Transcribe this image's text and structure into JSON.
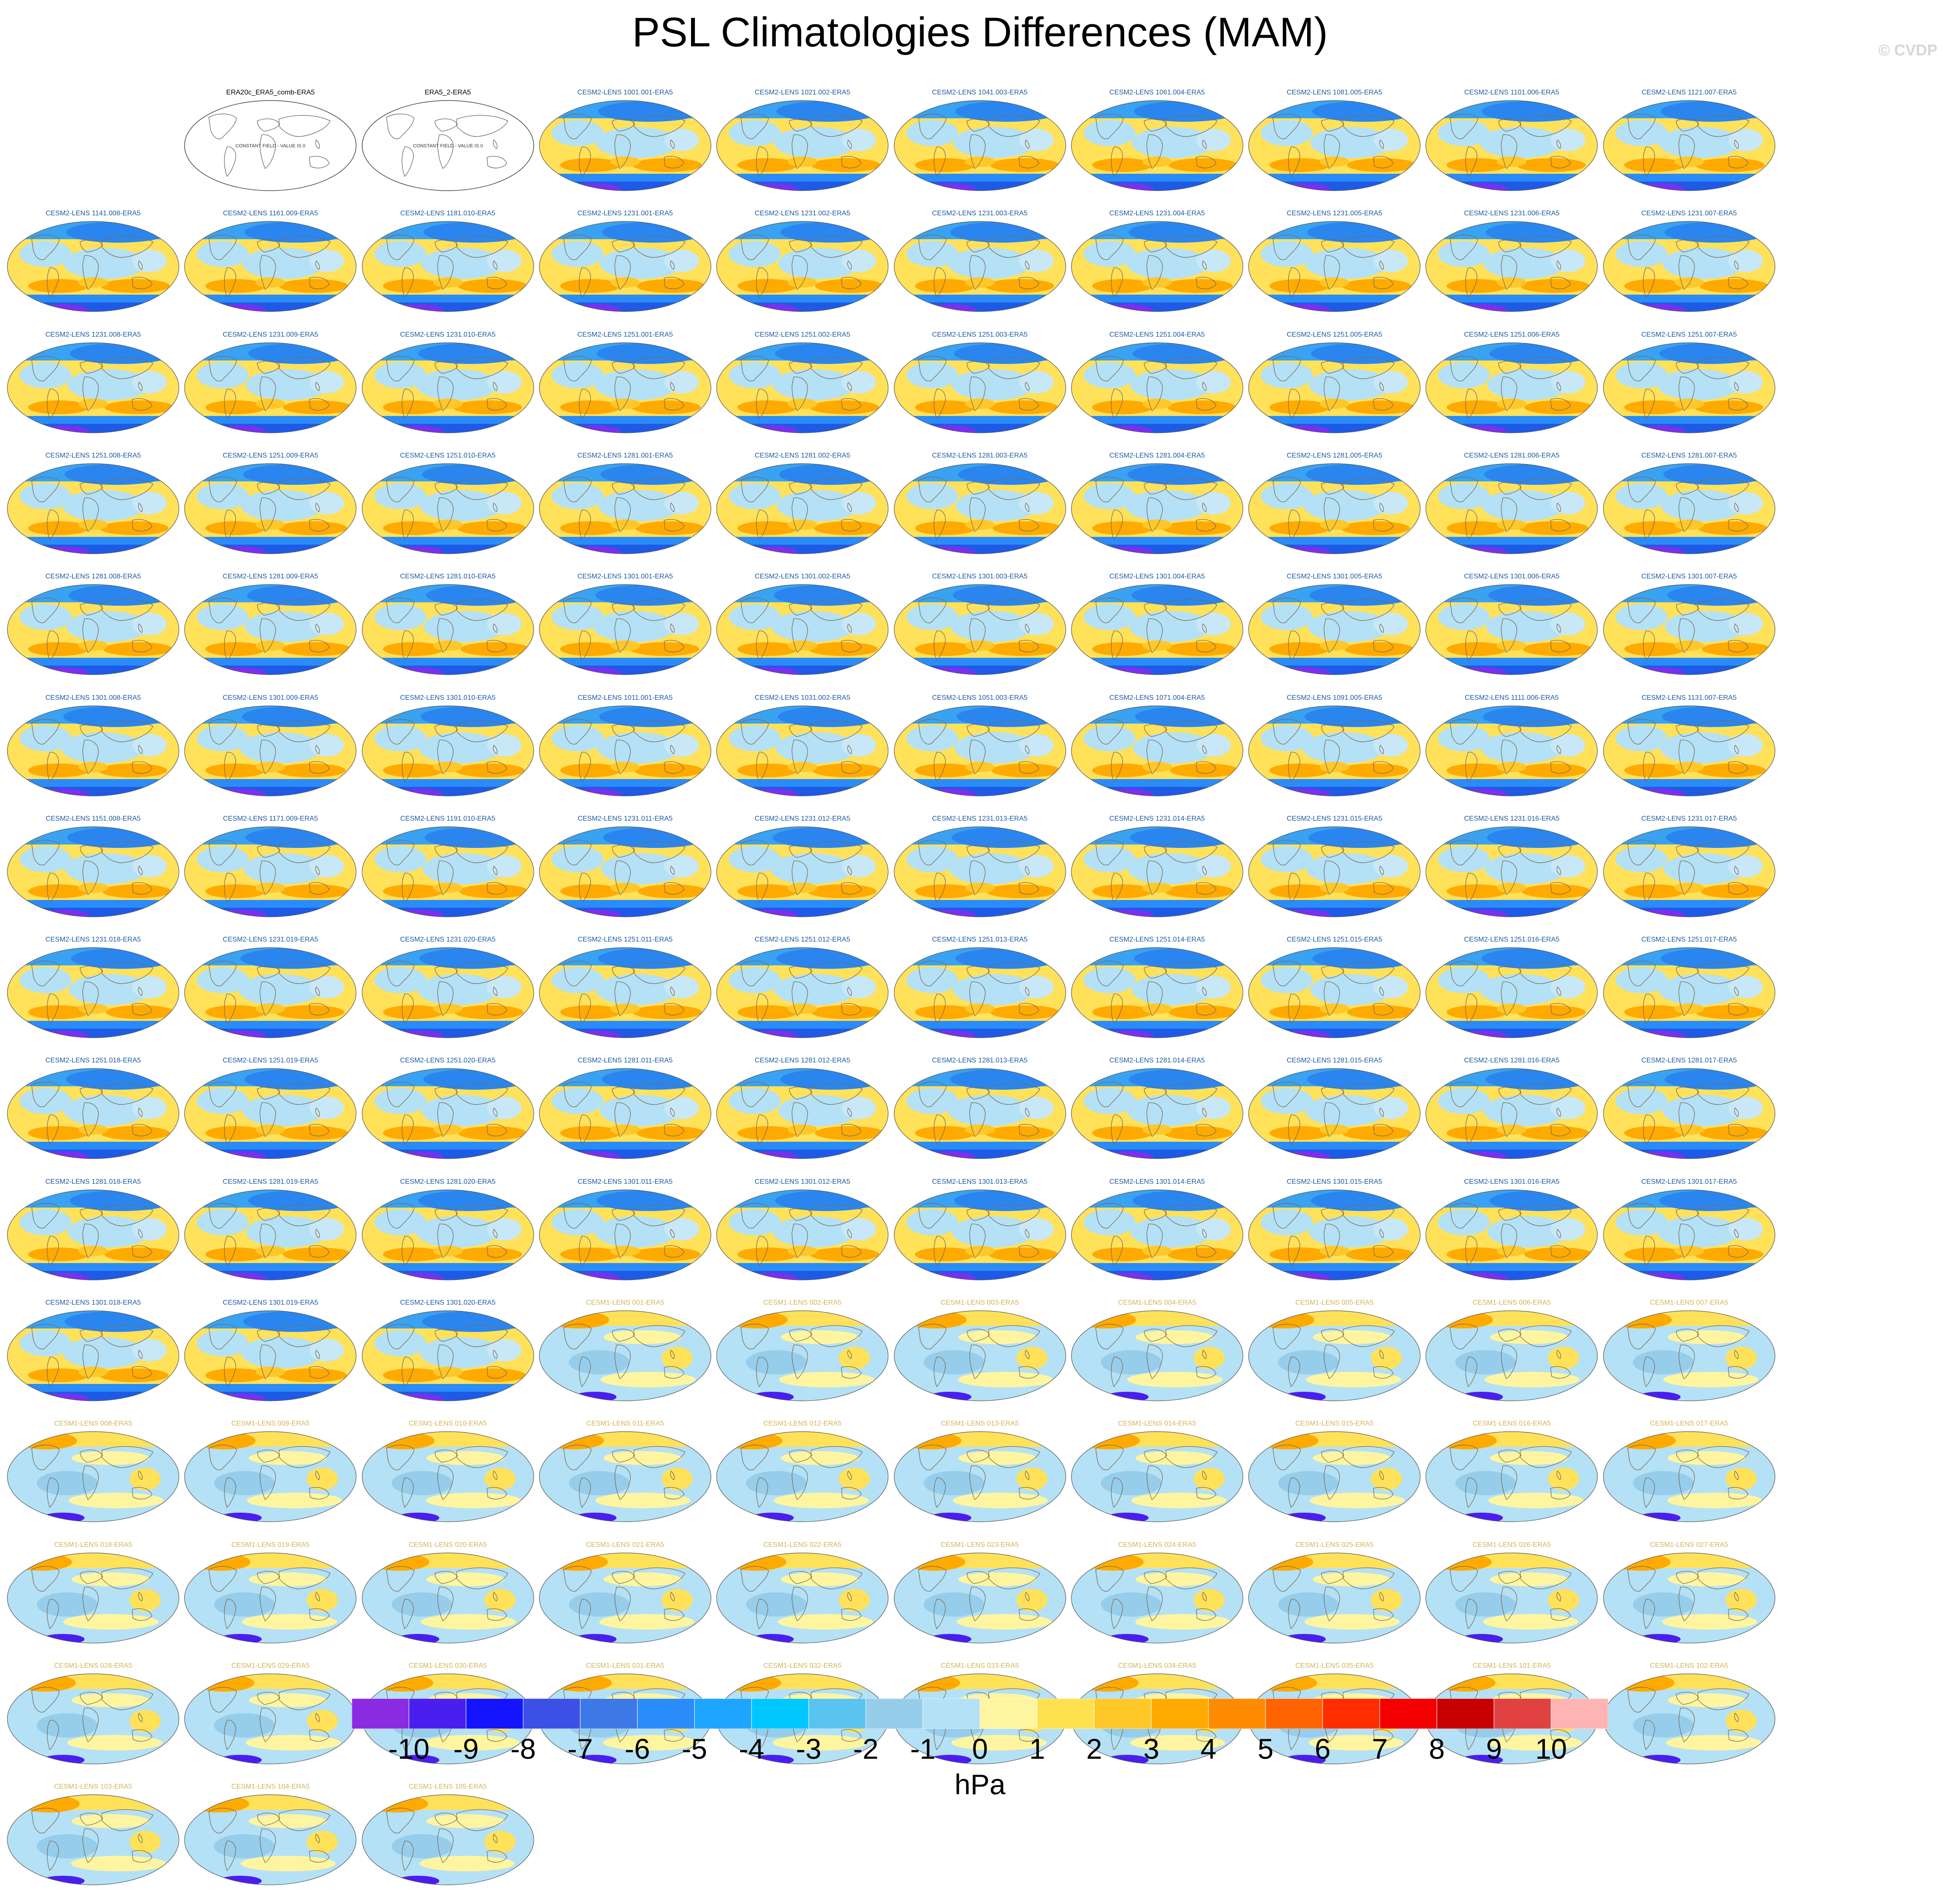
{
  "title": "PSL Climatologies Differences (MAM)",
  "watermark": "© CVDP",
  "units": "hPa",
  "constant_field_note": "CONSTANT FIELD - VALUE IS 0",
  "colorbar": {
    "colors": [
      "#8a2be2",
      "#4b1ef0",
      "#1414ff",
      "#3c50e6",
      "#3c78e6",
      "#2a8cf8",
      "#1ea5ff",
      "#00c8ff",
      "#5ac3f0",
      "#96cdeb",
      "#b4e1f5",
      "#fff5a0",
      "#ffe150",
      "#ffc828",
      "#ffaa00",
      "#ff8c00",
      "#ff6400",
      "#ff2d00",
      "#f50000",
      "#c80000",
      "#e14141",
      "#ffb4b4"
    ],
    "labels": [
      "-10",
      "-9",
      "-8",
      "-7",
      "-6",
      "-5",
      "-4",
      "-3",
      "-2",
      "-1",
      "0",
      "1",
      "2",
      "3",
      "4",
      "5",
      "6",
      "7",
      "8",
      "9",
      "10"
    ]
  },
  "title_colors": {
    "obs": "#000000",
    "cesm2": "#1e5aa0",
    "cesm1": "#d2b45a"
  },
  "panels": [
    {
      "slot": 1,
      "title": "ERA20c_ERA5_comb-ERA5",
      "type": "obs"
    },
    {
      "slot": 2,
      "title": "ERA5_2-ERA5",
      "type": "obs"
    },
    {
      "slot": 3,
      "title": "CESM2-LENS 1001.001-ERA5",
      "type": "cesm2"
    },
    {
      "slot": 4,
      "title": "CESM2-LENS 1021.002-ERA5",
      "type": "cesm2"
    },
    {
      "slot": 5,
      "title": "CESM2-LENS 1041.003-ERA5",
      "type": "cesm2"
    },
    {
      "slot": 6,
      "title": "CESM2-LENS 1061.004-ERA5",
      "type": "cesm2"
    },
    {
      "slot": 7,
      "title": "CESM2-LENS 1081.005-ERA5",
      "type": "cesm2"
    },
    {
      "slot": 8,
      "title": "CESM2-LENS 1101.006-ERA5",
      "type": "cesm2"
    },
    {
      "slot": 9,
      "title": "CESM2-LENS 1121.007-ERA5",
      "type": "cesm2"
    },
    {
      "slot": 10,
      "title": "CESM2-LENS 1141.008-ERA5",
      "type": "cesm2"
    },
    {
      "slot": 11,
      "title": "CESM2-LENS 1161.009-ERA5",
      "type": "cesm2"
    },
    {
      "slot": 12,
      "title": "CESM2-LENS 1181.010-ERA5",
      "type": "cesm2"
    },
    {
      "slot": 13,
      "title": "CESM2-LENS 1231.001-ERA5",
      "type": "cesm2"
    },
    {
      "slot": 14,
      "title": "CESM2-LENS 1231.002-ERA5",
      "type": "cesm2"
    },
    {
      "slot": 15,
      "title": "CESM2-LENS 1231.003-ERA5",
      "type": "cesm2"
    },
    {
      "slot": 16,
      "title": "CESM2-LENS 1231.004-ERA5",
      "type": "cesm2"
    },
    {
      "slot": 17,
      "title": "CESM2-LENS 1231.005-ERA5",
      "type": "cesm2"
    },
    {
      "slot": 18,
      "title": "CESM2-LENS 1231.006-ERA5",
      "type": "cesm2"
    },
    {
      "slot": 19,
      "title": "CESM2-LENS 1231.007-ERA5",
      "type": "cesm2"
    },
    {
      "slot": 20,
      "title": "CESM2-LENS 1231.008-ERA5",
      "type": "cesm2"
    },
    {
      "slot": 21,
      "title": "CESM2-LENS 1231.009-ERA5",
      "type": "cesm2"
    },
    {
      "slot": 22,
      "title": "CESM2-LENS 1231.010-ERA5",
      "type": "cesm2"
    },
    {
      "slot": 23,
      "title": "CESM2-LENS 1251.001-ERA5",
      "type": "cesm2"
    },
    {
      "slot": 24,
      "title": "CESM2-LENS 1251.002-ERA5",
      "type": "cesm2"
    },
    {
      "slot": 25,
      "title": "CESM2-LENS 1251.003-ERA5",
      "type": "cesm2"
    },
    {
      "slot": 26,
      "title": "CESM2-LENS 1251.004-ERA5",
      "type": "cesm2"
    },
    {
      "slot": 27,
      "title": "CESM2-LENS 1251.005-ERA5",
      "type": "cesm2"
    },
    {
      "slot": 28,
      "title": "CESM2-LENS 1251.006-ERA5",
      "type": "cesm2"
    },
    {
      "slot": 29,
      "title": "CESM2-LENS 1251.007-ERA5",
      "type": "cesm2"
    },
    {
      "slot": 30,
      "title": "CESM2-LENS 1251.008-ERA5",
      "type": "cesm2"
    },
    {
      "slot": 31,
      "title": "CESM2-LENS 1251.009-ERA5",
      "type": "cesm2"
    },
    {
      "slot": 32,
      "title": "CESM2-LENS 1251.010-ERA5",
      "type": "cesm2"
    },
    {
      "slot": 33,
      "title": "CESM2-LENS 1281.001-ERA5",
      "type": "cesm2"
    },
    {
      "slot": 34,
      "title": "CESM2-LENS 1281.002-ERA5",
      "type": "cesm2"
    },
    {
      "slot": 35,
      "title": "CESM2-LENS 1281.003-ERA5",
      "type": "cesm2"
    },
    {
      "slot": 36,
      "title": "CESM2-LENS 1281.004-ERA5",
      "type": "cesm2"
    },
    {
      "slot": 37,
      "title": "CESM2-LENS 1281.005-ERA5",
      "type": "cesm2"
    },
    {
      "slot": 38,
      "title": "CESM2-LENS 1281.006-ERA5",
      "type": "cesm2"
    },
    {
      "slot": 39,
      "title": "CESM2-LENS 1281.007-ERA5",
      "type": "cesm2"
    },
    {
      "slot": 40,
      "title": "CESM2-LENS 1281.008-ERA5",
      "type": "cesm2"
    },
    {
      "slot": 41,
      "title": "CESM2-LENS 1281.009-ERA5",
      "type": "cesm2"
    },
    {
      "slot": 42,
      "title": "CESM2-LENS 1281.010-ERA5",
      "type": "cesm2"
    },
    {
      "slot": 43,
      "title": "CESM2-LENS 1301.001-ERA5",
      "type": "cesm2"
    },
    {
      "slot": 44,
      "title": "CESM2-LENS 1301.002-ERA5",
      "type": "cesm2"
    },
    {
      "slot": 45,
      "title": "CESM2-LENS 1301.003-ERA5",
      "type": "cesm2"
    },
    {
      "slot": 46,
      "title": "CESM2-LENS 1301.004-ERA5",
      "type": "cesm2"
    },
    {
      "slot": 47,
      "title": "CESM2-LENS 1301.005-ERA5",
      "type": "cesm2"
    },
    {
      "slot": 48,
      "title": "CESM2-LENS 1301.006-ERA5",
      "type": "cesm2"
    },
    {
      "slot": 49,
      "title": "CESM2-LENS 1301.007-ERA5",
      "type": "cesm2"
    },
    {
      "slot": 50,
      "title": "CESM2-LENS 1301.008-ERA5",
      "type": "cesm2"
    },
    {
      "slot": 51,
      "title": "CESM2-LENS 1301.009-ERA5",
      "type": "cesm2"
    },
    {
      "slot": 52,
      "title": "CESM2-LENS 1301.010-ERA5",
      "type": "cesm2"
    },
    {
      "slot": 53,
      "title": "CESM2-LENS 1011.001-ERA5",
      "type": "cesm2"
    },
    {
      "slot": 54,
      "title": "CESM2-LENS 1031.002-ERA5",
      "type": "cesm2"
    },
    {
      "slot": 55,
      "title": "CESM2-LENS 1051.003-ERA5",
      "type": "cesm2"
    },
    {
      "slot": 56,
      "title": "CESM2-LENS 1071.004-ERA5",
      "type": "cesm2"
    },
    {
      "slot": 57,
      "title": "CESM2-LENS 1091.005-ERA5",
      "type": "cesm2"
    },
    {
      "slot": 58,
      "title": "CESM2-LENS 1111.006-ERA5",
      "type": "cesm2"
    },
    {
      "slot": 59,
      "title": "CESM2-LENS 1131.007-ERA5",
      "type": "cesm2"
    },
    {
      "slot": 60,
      "title": "CESM2-LENS 1151.008-ERA5",
      "type": "cesm2"
    },
    {
      "slot": 61,
      "title": "CESM2-LENS 1171.009-ERA5",
      "type": "cesm2"
    },
    {
      "slot": 62,
      "title": "CESM2-LENS 1191.010-ERA5",
      "type": "cesm2"
    },
    {
      "slot": 63,
      "title": "CESM2-LENS 1231.011-ERA5",
      "type": "cesm2"
    },
    {
      "slot": 64,
      "title": "CESM2-LENS 1231.012-ERA5",
      "type": "cesm2"
    },
    {
      "slot": 65,
      "title": "CESM2-LENS 1231.013-ERA5",
      "type": "cesm2"
    },
    {
      "slot": 66,
      "title": "CESM2-LENS 1231.014-ERA5",
      "type": "cesm2"
    },
    {
      "slot": 67,
      "title": "CESM2-LENS 1231.015-ERA5",
      "type": "cesm2"
    },
    {
      "slot": 68,
      "title": "CESM2-LENS 1231.016-ERA5",
      "type": "cesm2"
    },
    {
      "slot": 69,
      "title": "CESM2-LENS 1231.017-ERA5",
      "type": "cesm2"
    },
    {
      "slot": 70,
      "title": "CESM2-LENS 1231.018-ERA5",
      "type": "cesm2"
    },
    {
      "slot": 71,
      "title": "CESM2-LENS 1231.019-ERA5",
      "type": "cesm2"
    },
    {
      "slot": 72,
      "title": "CESM2-LENS 1231.020-ERA5",
      "type": "cesm2"
    },
    {
      "slot": 73,
      "title": "CESM2-LENS 1251.011-ERA5",
      "type": "cesm2"
    },
    {
      "slot": 74,
      "title": "CESM2-LENS 1251.012-ERA5",
      "type": "cesm2"
    },
    {
      "slot": 75,
      "title": "CESM2-LENS 1251.013-ERA5",
      "type": "cesm2"
    },
    {
      "slot": 76,
      "title": "CESM2-LENS 1251.014-ERA5",
      "type": "cesm2"
    },
    {
      "slot": 77,
      "title": "CESM2-LENS 1251.015-ERA5",
      "type": "cesm2"
    },
    {
      "slot": 78,
      "title": "CESM2-LENS 1251.016-ERA5",
      "type": "cesm2"
    },
    {
      "slot": 79,
      "title": "CESM2-LENS 1251.017-ERA5",
      "type": "cesm2"
    },
    {
      "slot": 80,
      "title": "CESM2-LENS 1251.018-ERA5",
      "type": "cesm2"
    },
    {
      "slot": 81,
      "title": "CESM2-LENS 1251.019-ERA5",
      "type": "cesm2"
    },
    {
      "slot": 82,
      "title": "CESM2-LENS 1251.020-ERA5",
      "type": "cesm2"
    },
    {
      "slot": 83,
      "title": "CESM2-LENS 1281.011-ERA5",
      "type": "cesm2"
    },
    {
      "slot": 84,
      "title": "CESM2-LENS 1281.012-ERA5",
      "type": "cesm2"
    },
    {
      "slot": 85,
      "title": "CESM2-LENS 1281.013-ERA5",
      "type": "cesm2"
    },
    {
      "slot": 86,
      "title": "CESM2-LENS 1281.014-ERA5",
      "type": "cesm2"
    },
    {
      "slot": 87,
      "title": "CESM2-LENS 1281.015-ERA5",
      "type": "cesm2"
    },
    {
      "slot": 88,
      "title": "CESM2-LENS 1281.016-ERA5",
      "type": "cesm2"
    },
    {
      "slot": 89,
      "title": "CESM2-LENS 1281.017-ERA5",
      "type": "cesm2"
    },
    {
      "slot": 90,
      "title": "CESM2-LENS 1281.018-ERA5",
      "type": "cesm2"
    },
    {
      "slot": 91,
      "title": "CESM2-LENS 1281.019-ERA5",
      "type": "cesm2"
    },
    {
      "slot": 92,
      "title": "CESM2-LENS 1281.020-ERA5",
      "type": "cesm2"
    },
    {
      "slot": 93,
      "title": "CESM2-LENS 1301.011-ERA5",
      "type": "cesm2"
    },
    {
      "slot": 94,
      "title": "CESM2-LENS 1301.012-ERA5",
      "type": "cesm2"
    },
    {
      "slot": 95,
      "title": "CESM2-LENS 1301.013-ERA5",
      "type": "cesm2"
    },
    {
      "slot": 96,
      "title": "CESM2-LENS 1301.014-ERA5",
      "type": "cesm2"
    },
    {
      "slot": 97,
      "title": "CESM2-LENS 1301.015-ERA5",
      "type": "cesm2"
    },
    {
      "slot": 98,
      "title": "CESM2-LENS 1301.016-ERA5",
      "type": "cesm2"
    },
    {
      "slot": 99,
      "title": "CESM2-LENS 1301.017-ERA5",
      "type": "cesm2"
    },
    {
      "slot": 100,
      "title": "CESM2-LENS 1301.018-ERA5",
      "type": "cesm2"
    },
    {
      "slot": 101,
      "title": "CESM2-LENS 1301.019-ERA5",
      "type": "cesm2"
    },
    {
      "slot": 102,
      "title": "CESM2-LENS 1301.020-ERA5",
      "type": "cesm2"
    },
    {
      "slot": 103,
      "title": "CESM1-LENS 001-ERA5",
      "type": "cesm1"
    },
    {
      "slot": 104,
      "title": "CESM1-LENS 002-ERA5",
      "type": "cesm1"
    },
    {
      "slot": 105,
      "title": "CESM1-LENS 003-ERA5",
      "type": "cesm1"
    },
    {
      "slot": 106,
      "title": "CESM1-LENS 004-ERA5",
      "type": "cesm1"
    },
    {
      "slot": 107,
      "title": "CESM1-LENS 005-ERA5",
      "type": "cesm1"
    },
    {
      "slot": 108,
      "title": "CESM1-LENS 006-ERA5",
      "type": "cesm1"
    },
    {
      "slot": 109,
      "title": "CESM1-LENS 007-ERA5",
      "type": "cesm1"
    },
    {
      "slot": 110,
      "title": "CESM1-LENS 008-ERA5",
      "type": "cesm1"
    },
    {
      "slot": 111,
      "title": "CESM1-LENS 009-ERA5",
      "type": "cesm1"
    },
    {
      "slot": 112,
      "title": "CESM1-LENS 010-ERA5",
      "type": "cesm1"
    },
    {
      "slot": 113,
      "title": "CESM1-LENS 011-ERA5",
      "type": "cesm1"
    },
    {
      "slot": 114,
      "title": "CESM1-LENS 012-ERA5",
      "type": "cesm1"
    },
    {
      "slot": 115,
      "title": "CESM1-LENS 013-ERA5",
      "type": "cesm1"
    },
    {
      "slot": 116,
      "title": "CESM1-LENS 014-ERA5",
      "type": "cesm1"
    },
    {
      "slot": 117,
      "title": "CESM1-LENS 015-ERA5",
      "type": "cesm1"
    },
    {
      "slot": 118,
      "title": "CESM1-LENS 016-ERA5",
      "type": "cesm1"
    },
    {
      "slot": 119,
      "title": "CESM1-LENS 017-ERA5",
      "type": "cesm1"
    },
    {
      "slot": 120,
      "title": "CESM1-LENS 018-ERA5",
      "type": "cesm1"
    },
    {
      "slot": 121,
      "title": "CESM1-LENS 019-ERA5",
      "type": "cesm1"
    },
    {
      "slot": 122,
      "title": "CESM1-LENS 020-ERA5",
      "type": "cesm1"
    },
    {
      "slot": 123,
      "title": "CESM1-LENS 021-ERA5",
      "type": "cesm1"
    },
    {
      "slot": 124,
      "title": "CESM1-LENS 022-ERA5",
      "type": "cesm1"
    },
    {
      "slot": 125,
      "title": "CESM1-LENS 023-ERA5",
      "type": "cesm1"
    },
    {
      "slot": 126,
      "title": "CESM1-LENS 024-ERA5",
      "type": "cesm1"
    },
    {
      "slot": 127,
      "title": "CESM1-LENS 025-ERA5",
      "type": "cesm1"
    },
    {
      "slot": 128,
      "title": "CESM1-LENS 026-ERA5",
      "type": "cesm1"
    },
    {
      "slot": 129,
      "title": "CESM1-LENS 027-ERA5",
      "type": "cesm1"
    },
    {
      "slot": 130,
      "title": "CESM1-LENS 028-ERA5",
      "type": "cesm1"
    },
    {
      "slot": 131,
      "title": "CESM1-LENS 029-ERA5",
      "type": "cesm1"
    },
    {
      "slot": 132,
      "title": "CESM1-LENS 030-ERA5",
      "type": "cesm1"
    },
    {
      "slot": 133,
      "title": "CESM1-LENS 031-ERA5",
      "type": "cesm1"
    },
    {
      "slot": 134,
      "title": "CESM1-LENS 032-ERA5",
      "type": "cesm1"
    },
    {
      "slot": 135,
      "title": "CESM1-LENS 033-ERA5",
      "type": "cesm1"
    },
    {
      "slot": 136,
      "title": "CESM1-LENS 034-ERA5",
      "type": "cesm1"
    },
    {
      "slot": 137,
      "title": "CESM1-LENS 035-ERA5",
      "type": "cesm1"
    },
    {
      "slot": 138,
      "title": "CESM1-LENS 101-ERA5",
      "type": "cesm1"
    },
    {
      "slot": 139,
      "title": "CESM1-LENS 102-ERA5",
      "type": "cesm1"
    },
    {
      "slot": 140,
      "title": "CESM1-LENS 103-ERA5",
      "type": "cesm1"
    },
    {
      "slot": 141,
      "title": "CESM1-LENS 104-ERA5",
      "type": "cesm1"
    },
    {
      "slot": 142,
      "title": "CESM1-LENS 105-ERA5",
      "type": "cesm1"
    }
  ]
}
